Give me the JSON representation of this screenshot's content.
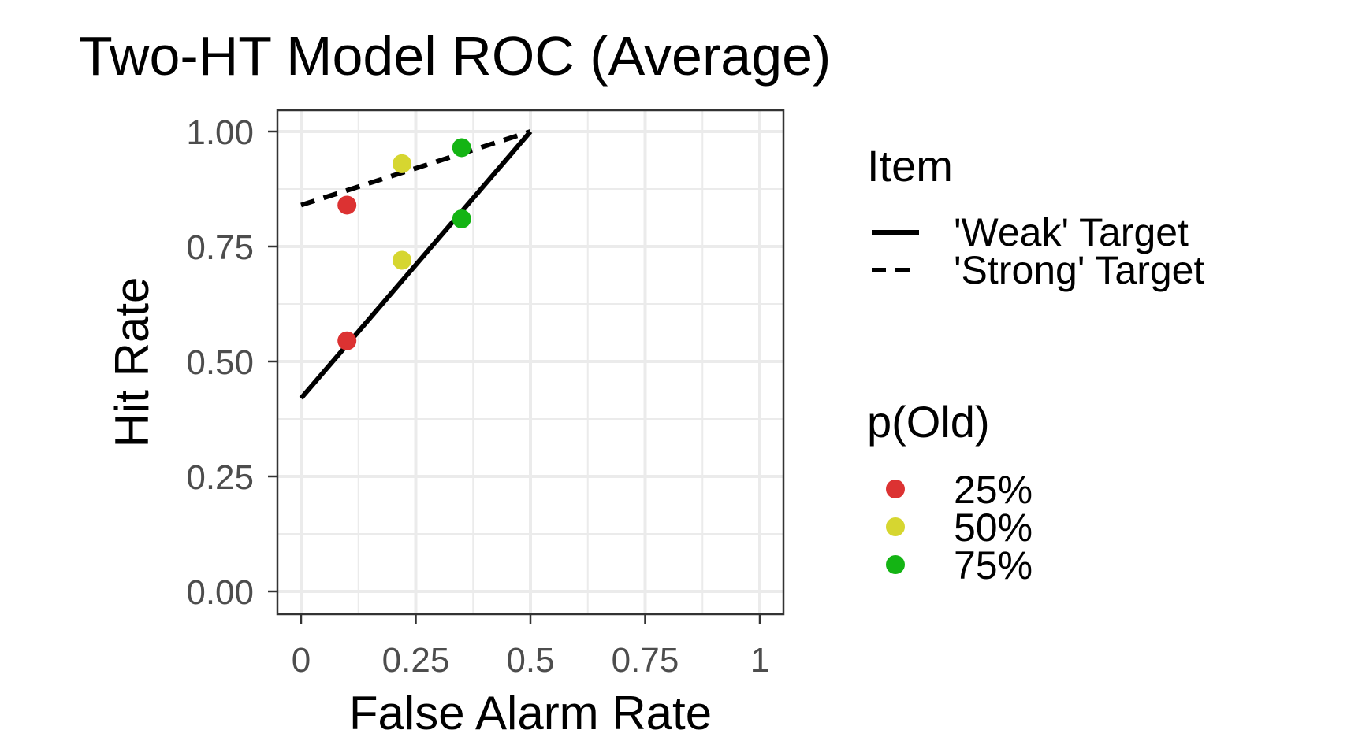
{
  "chart_data": {
    "type": "scatter",
    "title": "Two-HT Model ROC (Average)",
    "xlabel": "False Alarm Rate",
    "ylabel": "Hit Rate",
    "xlim": [
      0,
      1
    ],
    "ylim": [
      0,
      1
    ],
    "x_ticks": [
      0,
      0.25,
      0.5,
      0.75,
      1
    ],
    "x_tick_labels": [
      "0",
      "0.25",
      "0.5",
      "0.75",
      "1"
    ],
    "y_ticks": [
      0,
      0.25,
      0.5,
      0.75,
      1
    ],
    "y_tick_labels": [
      "0.00",
      "0.25",
      "0.50",
      "0.75",
      "1.00"
    ],
    "grid": true,
    "legend_position": "right",
    "lines": [
      {
        "name": "'Weak' Target",
        "linetype": "solid",
        "x": [
          0,
          0.5
        ],
        "y": [
          0.42,
          1.0
        ]
      },
      {
        "name": "'Strong' Target",
        "linetype": "dashed",
        "x": [
          0,
          0.5
        ],
        "y": [
          0.84,
          1.0
        ]
      }
    ],
    "point_groups": [
      {
        "name": "25%",
        "color": "#dc3232",
        "points": [
          {
            "x": 0.1,
            "y": 0.545
          },
          {
            "x": 0.1,
            "y": 0.84
          }
        ]
      },
      {
        "name": "50%",
        "color": "#d6d630",
        "points": [
          {
            "x": 0.22,
            "y": 0.72
          },
          {
            "x": 0.22,
            "y": 0.93
          }
        ]
      },
      {
        "name": "75%",
        "color": "#14b414",
        "points": [
          {
            "x": 0.35,
            "y": 0.81
          },
          {
            "x": 0.35,
            "y": 0.965
          }
        ]
      }
    ],
    "legend": {
      "linetype_title": "Item",
      "color_title": "p(Old)"
    }
  }
}
